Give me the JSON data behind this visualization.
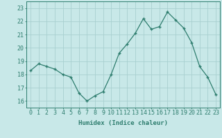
{
  "x": [
    0,
    1,
    2,
    3,
    4,
    5,
    6,
    7,
    8,
    9,
    10,
    11,
    12,
    13,
    14,
    15,
    16,
    17,
    18,
    19,
    20,
    21,
    22,
    23
  ],
  "y": [
    18.3,
    18.8,
    18.6,
    18.4,
    18.0,
    17.8,
    16.6,
    16.0,
    16.4,
    16.7,
    18.0,
    19.6,
    20.3,
    21.1,
    22.2,
    21.4,
    21.6,
    22.7,
    22.1,
    21.5,
    20.4,
    18.6,
    17.8,
    16.5
  ],
  "line_color": "#2e7d6e",
  "marker": "+",
  "marker_color": "#2e7d6e",
  "bg_color": "#c8e8e8",
  "grid_color": "#a8d0d0",
  "xlabel": "Humidex (Indice chaleur)",
  "xlim": [
    -0.5,
    23.5
  ],
  "ylim": [
    15.5,
    23.5
  ],
  "yticks": [
    16,
    17,
    18,
    19,
    20,
    21,
    22,
    23
  ],
  "xticks": [
    0,
    1,
    2,
    3,
    4,
    5,
    6,
    7,
    8,
    9,
    10,
    11,
    12,
    13,
    14,
    15,
    16,
    17,
    18,
    19,
    20,
    21,
    22,
    23
  ],
  "label_fontsize": 6.5,
  "tick_fontsize": 6.0
}
